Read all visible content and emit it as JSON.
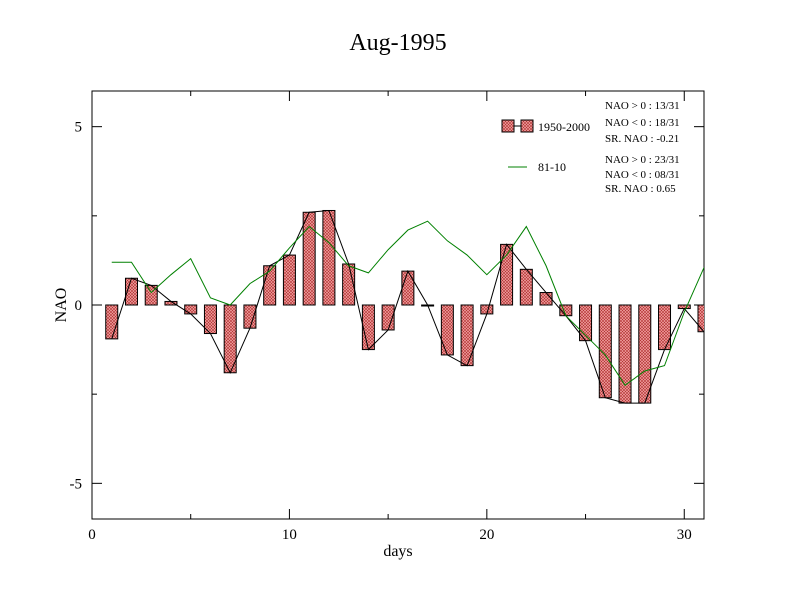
{
  "chart_data": {
    "type": "bar",
    "title": "Aug-1995",
    "xlabel": "days",
    "ylabel": "NAO",
    "xlim": [
      0,
      31
    ],
    "ylim": [
      -6,
      6
    ],
    "x_ticks": [
      0,
      10,
      20,
      30
    ],
    "y_ticks": [
      5,
      0,
      -5
    ],
    "y_tick_labels": [
      "5",
      "0",
      "-5"
    ],
    "legend_position": "top-right",
    "series": [
      {
        "name": "1950-2000",
        "kind": "bar",
        "color": "#e87070",
        "x": [
          1,
          2,
          3,
          4,
          5,
          6,
          7,
          8,
          9,
          10,
          11,
          12,
          13,
          14,
          15,
          16,
          17,
          18,
          19,
          20,
          21,
          22,
          23,
          24,
          25,
          26,
          27,
          28,
          29,
          30,
          31
        ],
        "values": [
          -0.95,
          0.75,
          0.55,
          0.1,
          -0.25,
          -0.8,
          -1.9,
          -0.65,
          1.1,
          1.4,
          2.6,
          2.65,
          1.15,
          -1.25,
          -0.7,
          0.95,
          0.0,
          -1.4,
          -1.7,
          -0.25,
          1.7,
          1.0,
          0.35,
          -0.3,
          -1.0,
          -2.6,
          -2.75,
          -2.75,
          -1.25,
          -0.1,
          -0.75
        ]
      },
      {
        "name": "81-10",
        "kind": "line",
        "color": "#008000",
        "x": [
          1,
          2,
          3,
          4,
          5,
          6,
          7,
          8,
          9,
          10,
          11,
          12,
          13,
          14,
          15,
          16,
          17,
          18,
          19,
          20,
          21,
          22,
          23,
          24,
          25,
          26,
          27,
          28,
          29,
          30,
          31
        ],
        "values": [
          1.2,
          1.2,
          0.35,
          0.85,
          1.3,
          0.2,
          0.0,
          0.6,
          0.95,
          1.6,
          2.2,
          1.75,
          1.1,
          0.9,
          1.55,
          2.1,
          2.35,
          1.8,
          1.4,
          0.85,
          1.4,
          2.2,
          1.1,
          -0.3,
          -0.85,
          -1.4,
          -2.25,
          -1.85,
          -1.7,
          -0.2,
          1.05
        ]
      }
    ],
    "stats": {
      "series1": [
        "NAO > 0 : 13/31",
        "NAO < 0 : 18/31",
        "SR. NAO : -0.21"
      ],
      "series2": [
        "NAO > 0 : 23/31",
        "NAO < 0 : 08/31",
        "SR. NAO :  0.65"
      ]
    }
  }
}
